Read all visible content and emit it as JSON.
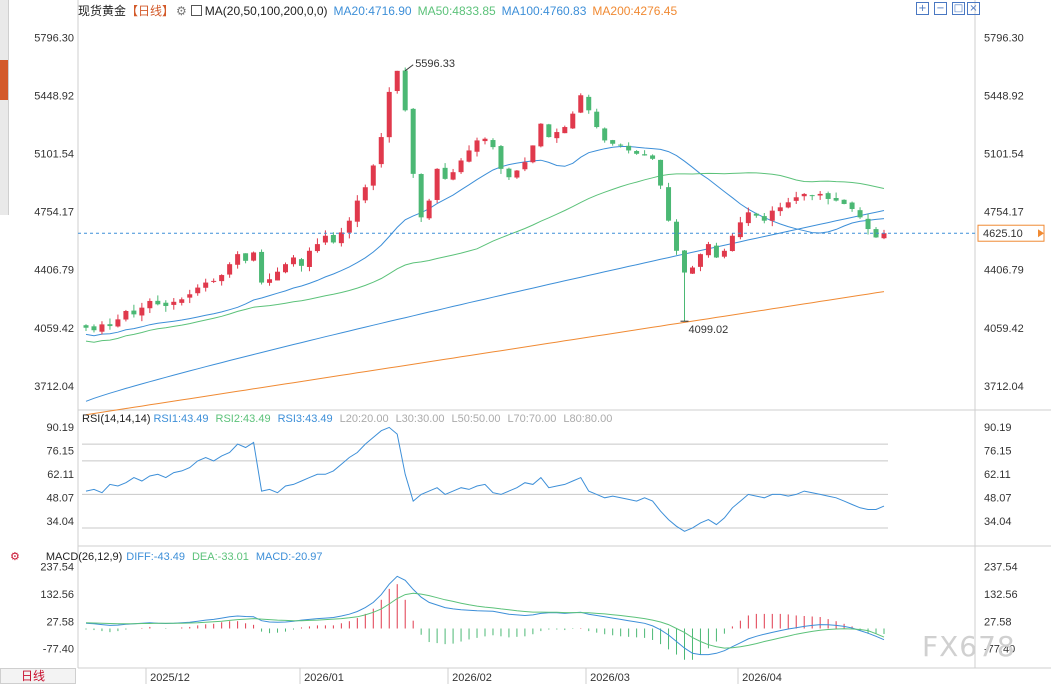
{
  "header": {
    "symbol": "现货黄金",
    "period": "【日线】",
    "ma_label": "MA(20,50,100,200,0,0)",
    "ma20": "MA20:4716.90",
    "ma50": "MA50:4833.85",
    "ma100": "MA100:4760.83",
    "ma200": "MA200:4276.45"
  },
  "rsi_header": {
    "title": "RSI(14,14,14)",
    "rsi1": "RSI1:43.49",
    "rsi2": "RSI2:43.49",
    "rsi3": "RSI3:43.49",
    "l20": "L20:20.00",
    "l30": "L30:30.00",
    "l50": "L50:50.00",
    "l70": "L70:70.00",
    "l80": "L80:80.00"
  },
  "macd_header": {
    "title": "MACD(26,12,9)",
    "diff": "DIFF:-43.49",
    "dea": "DEA:-33.01",
    "macd": "MACD:-20.97"
  },
  "bottom_tab": "日线",
  "watermark": "FX678",
  "icons": [
    "gear-icon",
    "ma-indicator-icon",
    "zoom-in-icon",
    "zoom-out-icon",
    "restore-icon",
    "close-icon"
  ],
  "colors": {
    "up": "#e0394c",
    "down": "#4bb874",
    "ma20": "#3d8fd8",
    "ma50": "#5cc27a",
    "ma100": "#3d8fd8",
    "ma200": "#f08a33",
    "price_tag": "#f08a33"
  },
  "chart_data": [
    {
      "type": "candlestick",
      "title": "现货黄金",
      "y_ticks": [
        "5796.30",
        "5448.92",
        "5101.54",
        "4754.17",
        "4406.79",
        "4059.42",
        "3712.04"
      ],
      "ylim": [
        3580,
        5900
      ],
      "x_labels": [
        "2025/12",
        "2026/01",
        "2026/02",
        "2026/03",
        "2026/04"
      ],
      "annotations": {
        "high": "5596.33",
        "low": "4099.02",
        "last_price": "4625.10"
      },
      "last_price": 4625.1,
      "ohlc_closes": [
        4060,
        4045,
        4080,
        4070,
        4110,
        4160,
        4140,
        4180,
        4220,
        4200,
        4190,
        4215,
        4230,
        4260,
        4300,
        4330,
        4340,
        4375,
        4440,
        4500,
        4460,
        4510,
        4330,
        4350,
        4395,
        4440,
        4480,
        4430,
        4520,
        4560,
        4610,
        4570,
        4630,
        4700,
        4820,
        4900,
        5030,
        5200,
        5470,
        5596,
        5360,
        4980,
        4720,
        4820,
        5010,
        4950,
        4990,
        5060,
        5120,
        5180,
        5190,
        5140,
        5010,
        4960,
        5000,
        5050,
        5150,
        5280,
        5200,
        5230,
        5260,
        5340,
        5450,
        5360,
        5260,
        5180,
        5160,
        5150,
        5120,
        5100,
        5090,
        5070,
        4910,
        4700,
        4520,
        4390,
        4420,
        4500,
        4560,
        4480,
        4520,
        4610,
        4690,
        4750,
        4730,
        4700,
        4760,
        4780,
        4810,
        4840,
        4860,
        4850,
        4860,
        4830,
        4820,
        4800,
        4770,
        4720,
        4650,
        4600,
        4625
      ],
      "series": [
        {
          "name": "MA20",
          "start": 4000,
          "end": 4717
        },
        {
          "name": "MA50",
          "start": 3960,
          "end": 4834
        },
        {
          "name": "MA100",
          "start": 3620,
          "end": 4761
        },
        {
          "name": "MA200",
          "start": 3540,
          "end": 4276
        }
      ]
    },
    {
      "type": "line",
      "title": "RSI(14,14,14)",
      "y_ticks": [
        "90.19",
        "76.15",
        "62.11",
        "48.07",
        "34.04"
      ],
      "ylim": [
        24,
        92
      ],
      "ref_lines": [
        30,
        50,
        70,
        80
      ],
      "series": [
        {
          "name": "RSI1",
          "values": [
            52,
            53,
            51,
            56,
            55,
            57,
            60,
            58,
            61,
            62,
            60,
            63,
            64,
            66,
            70,
            72,
            70,
            73,
            75,
            80,
            78,
            81,
            52,
            53,
            51,
            55,
            56,
            58,
            60,
            62,
            62,
            64,
            68,
            72,
            75,
            80,
            84,
            88,
            90,
            86,
            62,
            46,
            50,
            52,
            54,
            50,
            52,
            54,
            53,
            55,
            56,
            51,
            50,
            52,
            54,
            57,
            56,
            60,
            54,
            55,
            56,
            58,
            60,
            52,
            50,
            48,
            49,
            48,
            47,
            46,
            48,
            46,
            40,
            35,
            31,
            28,
            30,
            33,
            35,
            32,
            36,
            42,
            46,
            50,
            49,
            48,
            50,
            50,
            49,
            50,
            52,
            51,
            50,
            49,
            48,
            46,
            44,
            42,
            41,
            41,
            43
          ]
        }
      ]
    },
    {
      "type": "bar",
      "title": "MACD(26,12,9)",
      "y_ticks": [
        "237.54",
        "132.56",
        "27.58",
        "-77.40"
      ],
      "ylim": [
        -140,
        255
      ],
      "series": [
        {
          "name": "DIFF",
          "values": [
            20,
            18,
            15,
            12,
            13,
            16,
            18,
            20,
            22,
            20,
            19,
            20,
            22,
            24,
            28,
            32,
            35,
            40,
            45,
            48,
            46,
            45,
            30,
            25,
            24,
            25,
            28,
            32,
            35,
            38,
            40,
            42,
            48,
            55,
            65,
            80,
            100,
            130,
            170,
            200,
            185,
            150,
            120,
            100,
            90,
            80,
            75,
            72,
            70,
            68,
            67,
            66,
            60,
            55,
            52,
            50,
            52,
            58,
            60,
            60,
            58,
            60,
            62,
            55,
            50,
            45,
            40,
            35,
            30,
            25,
            20,
            10,
            -5,
            -25,
            -50,
            -75,
            -95,
            -100,
            -100,
            -95,
            -85,
            -70,
            -55,
            -40,
            -30,
            -22,
            -15,
            -8,
            -2,
            3,
            8,
            12,
            15,
            14,
            12,
            8,
            2,
            -8,
            -18,
            -30,
            -43
          ]
        },
        {
          "name": "DEA",
          "values": [
            22,
            21,
            20,
            19,
            18,
            18,
            18,
            19,
            19,
            20,
            20,
            20,
            20,
            21,
            22,
            24,
            26,
            28,
            31,
            34,
            36,
            38,
            36,
            34,
            32,
            31,
            30,
            30,
            31,
            32,
            34,
            36,
            38,
            41,
            45,
            52,
            62,
            75,
            94,
            115,
            130,
            135,
            132,
            126,
            118,
            110,
            104,
            97,
            91,
            86,
            82,
            79,
            75,
            72,
            68,
            65,
            63,
            63,
            62,
            62,
            61,
            61,
            61,
            60,
            58,
            56,
            53,
            50,
            46,
            42,
            38,
            32,
            25,
            15,
            0,
            -15,
            -35,
            -50,
            -62,
            -70,
            -75,
            -74,
            -70,
            -65,
            -58,
            -50,
            -43,
            -36,
            -29,
            -22,
            -16,
            -11,
            -7,
            -4,
            -2,
            -1,
            -2,
            -4,
            -8,
            -20,
            -33
          ]
        },
        {
          "name": "MACD",
          "values": [
            -4,
            -6,
            -10,
            -14,
            -10,
            -4,
            0,
            2,
            6,
            0,
            -2,
            0,
            4,
            6,
            12,
            16,
            18,
            24,
            28,
            28,
            20,
            14,
            -12,
            -18,
            -16,
            -12,
            -4,
            4,
            8,
            12,
            12,
            12,
            20,
            28,
            40,
            56,
            76,
            110,
            152,
            170,
            110,
            30,
            -24,
            -52,
            -56,
            -60,
            -58,
            -50,
            -42,
            -36,
            -30,
            -26,
            -30,
            -34,
            -32,
            -30,
            -22,
            -10,
            -4,
            -4,
            -6,
            -2,
            2,
            -10,
            -16,
            -22,
            -26,
            -30,
            -32,
            -34,
            -36,
            -44,
            -60,
            -80,
            -100,
            -120,
            -120,
            -100,
            -76,
            -50,
            -20,
            8,
            30,
            50,
            56,
            56,
            56,
            56,
            54,
            50,
            48,
            46,
            44,
            36,
            28,
            18,
            8,
            -8,
            -20,
            -20,
            -21
          ]
        }
      ]
    }
  ]
}
